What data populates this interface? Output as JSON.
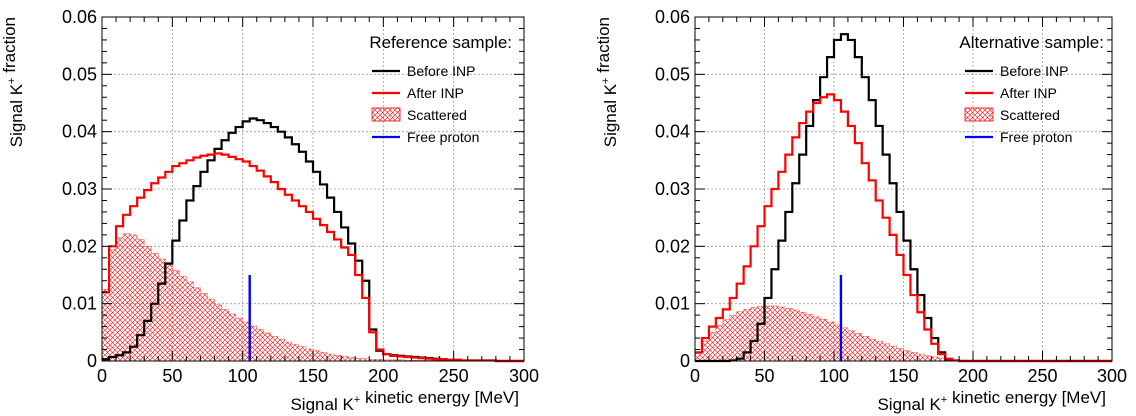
{
  "chart_data": [
    {
      "type": "histogram",
      "legend_title": "Reference sample:",
      "xlabel": "Signal K⁺ kinetic energy [MeV]",
      "ylabel": "Signal K⁺ fraction",
      "xlim": [
        0,
        300
      ],
      "ylim": [
        0,
        0.06
      ],
      "bin_width": 5,
      "grid": true,
      "legend_placement": "top-right",
      "x_ticks": [
        "0",
        "50",
        "100",
        "150",
        "200",
        "250",
        "300"
      ],
      "y_ticks": [
        "0",
        "0.01",
        "0.02",
        "0.03",
        "0.04",
        "0.05",
        "0.06"
      ],
      "series": [
        {
          "name": "Before INP",
          "style": "step",
          "color": "#000000",
          "values": [
            0.0003,
            0.0007,
            0.001,
            0.0015,
            0.0025,
            0.0045,
            0.007,
            0.01,
            0.0135,
            0.017,
            0.021,
            0.0245,
            0.028,
            0.0305,
            0.033,
            0.035,
            0.037,
            0.0385,
            0.0398,
            0.0408,
            0.0418,
            0.0423,
            0.042,
            0.0415,
            0.0408,
            0.04,
            0.039,
            0.0378,
            0.0365,
            0.0348,
            0.033,
            0.0308,
            0.0285,
            0.026,
            0.0233,
            0.0205,
            0.0175,
            0.014,
            0.0055,
            0.0018,
            0.0012,
            0.001,
            0.0009,
            0.0008,
            0.0007,
            0.0006,
            0.0005,
            0.0004,
            0.0003,
            0.0002,
            0.0002,
            0.0001,
            0.0001,
            0.0001,
            0.0001,
            0.0001,
            0.0,
            0.0,
            0.0,
            0.0
          ]
        },
        {
          "name": "After INP",
          "style": "step",
          "color": "#ff0000",
          "values": [
            0.012,
            0.02,
            0.0235,
            0.0255,
            0.027,
            0.0285,
            0.0298,
            0.031,
            0.032,
            0.033,
            0.034,
            0.0345,
            0.035,
            0.0355,
            0.0358,
            0.036,
            0.0362,
            0.036,
            0.0356,
            0.0352,
            0.0348,
            0.034,
            0.0332,
            0.0322,
            0.0312,
            0.03,
            0.029,
            0.028,
            0.027,
            0.026,
            0.0248,
            0.0237,
            0.0225,
            0.0212,
            0.0198,
            0.0185,
            0.015,
            0.011,
            0.005,
            0.002,
            0.0012,
            0.0009,
            0.0008,
            0.0007,
            0.0006,
            0.0005,
            0.0004,
            0.0003,
            0.0003,
            0.0002,
            0.0002,
            0.0001,
            0.0001,
            0.0001,
            0.0001,
            0.0001,
            0.0,
            0.0,
            0.0,
            0.0
          ]
        },
        {
          "name": "Scattered",
          "style": "hatched",
          "color": "#ff0000",
          "values": [
            0.0125,
            0.0195,
            0.0215,
            0.0222,
            0.022,
            0.0212,
            0.02,
            0.0188,
            0.0178,
            0.0168,
            0.0158,
            0.0148,
            0.0138,
            0.0128,
            0.0118,
            0.0108,
            0.0098,
            0.009,
            0.0082,
            0.0075,
            0.0068,
            0.0061,
            0.0055,
            0.0049,
            0.0043,
            0.0038,
            0.0033,
            0.0029,
            0.0025,
            0.0021,
            0.0018,
            0.0015,
            0.0012,
            0.001,
            0.0008,
            0.0006,
            0.0005,
            0.0004,
            0.0003,
            0.0003,
            0.0002,
            0.0002,
            0.0002,
            0.0001,
            0.0001,
            0.0001,
            0.0001,
            0.0001,
            0.0,
            0.0,
            0.0,
            0.0,
            0.0,
            0.0,
            0.0,
            0.0,
            0.0,
            0.0,
            0.0,
            0.0
          ]
        },
        {
          "name": "Free proton",
          "style": "vline",
          "color": "#0000ff",
          "x": 105,
          "y": 0.015
        }
      ]
    },
    {
      "type": "histogram",
      "legend_title": "Alternative sample:",
      "xlabel": "Signal K⁺ kinetic energy [MeV]",
      "ylabel": "Signal K⁺ fraction",
      "xlim": [
        0,
        300
      ],
      "ylim": [
        0,
        0.06
      ],
      "bin_width": 5,
      "grid": true,
      "legend_placement": "top-right",
      "x_ticks": [
        "0",
        "50",
        "100",
        "150",
        "200",
        "250",
        "300"
      ],
      "y_ticks": [
        "0",
        "0.01",
        "0.02",
        "0.03",
        "0.04",
        "0.05",
        "0.06"
      ],
      "series": [
        {
          "name": "Before INP",
          "style": "step",
          "color": "#000000",
          "values": [
            0.0,
            0.0,
            0.0,
            0.0,
            0.0,
            0.0001,
            0.0004,
            0.0015,
            0.0035,
            0.0065,
            0.011,
            0.016,
            0.021,
            0.026,
            0.031,
            0.036,
            0.041,
            0.0455,
            0.0495,
            0.053,
            0.056,
            0.057,
            0.056,
            0.053,
            0.0495,
            0.0455,
            0.041,
            0.036,
            0.031,
            0.026,
            0.021,
            0.016,
            0.0115,
            0.0075,
            0.004,
            0.0015,
            0.0003,
            0.0001,
            0.0,
            0.0,
            0.0,
            0.0,
            0.0,
            0.0,
            0.0,
            0.0,
            0.0,
            0.0,
            0.0,
            0.0,
            0.0,
            0.0,
            0.0,
            0.0,
            0.0,
            0.0,
            0.0,
            0.0,
            0.0,
            0.0
          ]
        },
        {
          "name": "After INP",
          "style": "step",
          "color": "#ff0000",
          "values": [
            0.0015,
            0.004,
            0.006,
            0.0075,
            0.009,
            0.011,
            0.0135,
            0.0165,
            0.02,
            0.0235,
            0.027,
            0.03,
            0.033,
            0.036,
            0.039,
            0.0415,
            0.0435,
            0.045,
            0.046,
            0.0465,
            0.0455,
            0.0435,
            0.041,
            0.038,
            0.0345,
            0.0315,
            0.028,
            0.025,
            0.022,
            0.0185,
            0.015,
            0.0115,
            0.0085,
            0.0055,
            0.003,
            0.0012,
            0.0004,
            0.0001,
            0.0,
            0.0,
            0.0,
            0.0,
            0.0,
            0.0,
            0.0,
            0.0,
            0.0,
            0.0,
            0.0,
            0.0,
            0.0,
            0.0,
            0.0,
            0.0,
            0.0,
            0.0,
            0.0,
            0.0,
            0.0,
            0.0
          ]
        },
        {
          "name": "Scattered",
          "style": "hatched",
          "color": "#ff0000",
          "values": [
            0.0015,
            0.0035,
            0.005,
            0.0062,
            0.0072,
            0.008,
            0.0086,
            0.009,
            0.0093,
            0.0095,
            0.0096,
            0.0096,
            0.0094,
            0.0092,
            0.0089,
            0.0085,
            0.0081,
            0.0077,
            0.0073,
            0.0068,
            0.0063,
            0.0058,
            0.0053,
            0.0048,
            0.0043,
            0.0038,
            0.0034,
            0.003,
            0.0026,
            0.0022,
            0.0018,
            0.0015,
            0.0012,
            0.0009,
            0.0007,
            0.0005,
            0.0003,
            0.0002,
            0.0001,
            0.0001,
            0.0,
            0.0,
            0.0,
            0.0,
            0.0,
            0.0,
            0.0,
            0.0,
            0.0,
            0.0,
            0.0,
            0.0,
            0.0,
            0.0,
            0.0,
            0.0,
            0.0,
            0.0,
            0.0,
            0.0
          ]
        },
        {
          "name": "Free proton",
          "style": "vline",
          "color": "#0000ff",
          "x": 105,
          "y": 0.015
        }
      ]
    }
  ]
}
